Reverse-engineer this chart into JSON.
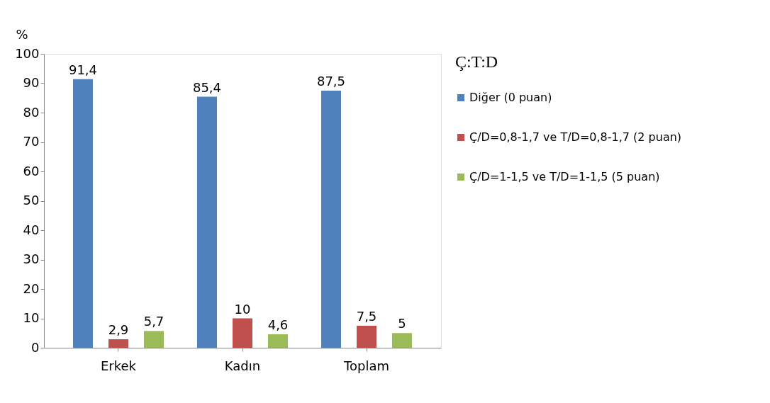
{
  "chart_data": {
    "type": "bar",
    "ylabel": "%",
    "legend_title": "Ç:T:D",
    "categories": [
      "Erkek",
      "Kadın",
      "Toplam"
    ],
    "series": [
      {
        "name": "Diğer (0 puan)",
        "color": "#4f81bd",
        "values": [
          91.4,
          85.4,
          87.5
        ],
        "value_labels": [
          "91,4",
          "85,4",
          "87,5"
        ]
      },
      {
        "name": "Ç/D=0,8-1,7 ve T/D=0,8-1,7 (2 puan)",
        "color": "#c0504d",
        "values": [
          2.9,
          10,
          7.5
        ],
        "value_labels": [
          "2,9",
          "10",
          "7,5"
        ]
      },
      {
        "name": "Ç/D=1-1,5 ve T/D=1-1,5 (5 puan)",
        "color": "#9bbb59",
        "values": [
          5.7,
          4.6,
          5
        ],
        "value_labels": [
          "5,7",
          "4,6",
          "5"
        ]
      }
    ],
    "ylim": [
      0,
      100
    ],
    "yticks": [
      0,
      10,
      20,
      30,
      40,
      50,
      60,
      70,
      80,
      90,
      100
    ],
    "grid": false,
    "legend": "right"
  }
}
